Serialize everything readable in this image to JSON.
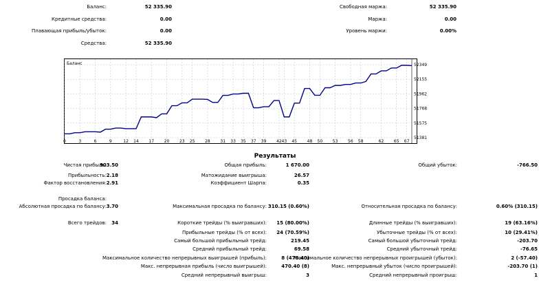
{
  "summary": {
    "balance": {
      "label": "Баланс:",
      "value": "52 335.90"
    },
    "credit": {
      "label": "Кредитные средства:",
      "value": "0.00"
    },
    "floating": {
      "label": "Плавающая прибыль/убыток:",
      "value": "0.00"
    },
    "equity": {
      "label": "Средства:",
      "value": "52 335.90"
    },
    "free_margin": {
      "label": "Свободная маржа:",
      "value": "52 335.90"
    },
    "margin": {
      "label": "Маржа:",
      "value": "0.00"
    },
    "margin_level": {
      "label": "Уровень маржи:",
      "value": "0.00%"
    }
  },
  "chart_data": {
    "type": "line",
    "title": "Баланс",
    "color": "#00008b",
    "x_ticks": [
      "0",
      "3",
      "6",
      "9",
      "12",
      "14",
      "17",
      "20",
      "23",
      "25",
      "28",
      "31",
      "33",
      "35",
      "37",
      "39",
      "42",
      "43",
      "45",
      "48",
      "50",
      "53",
      "56",
      "58",
      "62",
      "65",
      "67"
    ],
    "y_ticks": [
      "52349",
      "52155",
      "51962",
      "51768",
      "51575",
      "51381"
    ],
    "ylim": [
      51381,
      52349
    ],
    "xlim": [
      0,
      68
    ],
    "x": [
      0,
      1,
      2,
      3,
      4,
      5,
      6,
      7,
      8,
      9,
      10,
      11,
      12,
      13,
      14,
      15,
      16,
      17,
      18,
      19,
      20,
      21,
      22,
      23,
      24,
      25,
      26,
      27,
      28,
      29,
      30,
      31,
      32,
      33,
      34,
      35,
      36,
      37,
      38,
      39,
      40,
      41,
      42,
      43,
      44,
      45,
      46,
      47,
      48,
      49,
      50,
      51,
      52,
      53,
      54,
      55,
      56,
      57,
      58,
      59,
      60,
      61,
      62,
      63,
      64,
      65,
      66,
      67,
      68
    ],
    "values": [
      51432,
      51432,
      51447,
      51447,
      51459,
      51459,
      51459,
      51454,
      51493,
      51493,
      51508,
      51508,
      51500,
      51500,
      51500,
      51656,
      51656,
      51656,
      51646,
      51697,
      51697,
      51805,
      51805,
      51843,
      51843,
      51892,
      51892,
      51892,
      51888,
      51848,
      51848,
      51942,
      51942,
      51960,
      51960,
      51970,
      51970,
      51778,
      51778,
      51791,
      51791,
      51874,
      51874,
      51656,
      51656,
      51839,
      51839,
      52033,
      52033,
      51943,
      51943,
      52043,
      52043,
      52074,
      52074,
      52087,
      52087,
      52106,
      52106,
      52126,
      52226,
      52226,
      52267,
      52267,
      52305,
      52305,
      52341,
      52341,
      52336
    ]
  },
  "results": {
    "title": "Результаты",
    "net_profit": {
      "label": "Чистая прибыль:",
      "value": "903.50"
    },
    "gross_profit": {
      "label": "Общая прибыль:",
      "value": "1 670.00"
    },
    "gross_loss": {
      "label": "Общий убыток:",
      "value": "-766.50"
    },
    "profit_factor": {
      "label": "Прибыльность:",
      "value": "2.18"
    },
    "expected_payoff": {
      "label": "Матожидание выигрыша:",
      "value": "26.57"
    },
    "recovery_factor": {
      "label": "Фактор восстановления:",
      "value": "2.91"
    },
    "sharpe": {
      "label": "Коэффициент Шарпа:",
      "value": "0.35"
    },
    "drawdown_header": {
      "label": "Просадка баланса:"
    },
    "abs_drawdown": {
      "label": "Абсолютная просадка по балансу:",
      "value": "3.70"
    },
    "max_drawdown": {
      "label": "Максимальная просадка по балансу:",
      "value": "310.15 (0.60%)"
    },
    "rel_drawdown": {
      "label": "Относительная просадка по балансу:",
      "value": "0.60% (310.15)"
    },
    "total_trades": {
      "label": "Всего трейдов:",
      "value": "34"
    },
    "short_trades": {
      "label": "Короткие трейды (% выигравших):",
      "value": "15 (80.00%)"
    },
    "long_trades": {
      "label": "Длинные трейды (% выигравших):",
      "value": "19 (63.16%)"
    },
    "profit_trades": {
      "label": "Прибыльные трейды (% от всех):",
      "value": "24 (70.59%)"
    },
    "loss_trades": {
      "label": "Убыточные трейды (% от всех):",
      "value": "10 (29.41%)"
    },
    "largest_profit": {
      "label": "Самый большой прибыльный трейд:",
      "value": "219.45"
    },
    "largest_loss": {
      "label": "Самый большой убыточный трейд:",
      "value": "-203.70"
    },
    "avg_profit": {
      "label": "Средний прибыльный трейд:",
      "value": "69.58"
    },
    "avg_loss": {
      "label": "Средний убыточный трейд:",
      "value": "-76.65"
    },
    "max_consec_wins": {
      "label": "Максимальное количество непрерывных выигрышей (прибыль):",
      "value": "8 (470.40)"
    },
    "max_consec_losses": {
      "label": "Максимальное количество непрерывных проигрышей (убыток):",
      "value": "2 (-57.40)"
    },
    "max_consec_profit": {
      "label": "Макс. непрерывная прибыль (число выигрышей):",
      "value": "470.40 (8)"
    },
    "max_consec_loss": {
      "label": "Макс. непрерывный убыток (число проигрышей):",
      "value": "-203.70 (1)"
    },
    "avg_consec_wins": {
      "label": "Средний непрерывный выигрыш:",
      "value": "3"
    },
    "avg_consec_losses": {
      "label": "Средний непрерывный проигрыш:",
      "value": "1"
    }
  }
}
